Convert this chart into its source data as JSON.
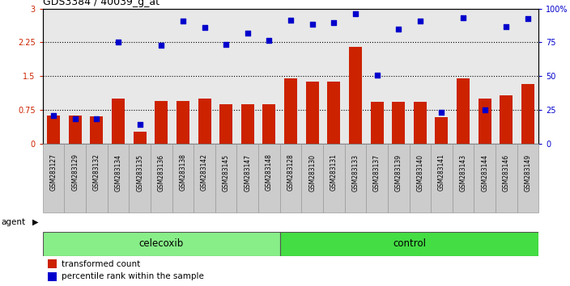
{
  "title": "GDS3384 / 40039_g_at",
  "samples": [
    "GSM283127",
    "GSM283129",
    "GSM283132",
    "GSM283134",
    "GSM283135",
    "GSM283136",
    "GSM283138",
    "GSM283142",
    "GSM283145",
    "GSM283147",
    "GSM283148",
    "GSM283128",
    "GSM283130",
    "GSM283131",
    "GSM283133",
    "GSM283137",
    "GSM283139",
    "GSM283140",
    "GSM283141",
    "GSM283143",
    "GSM283144",
    "GSM283146",
    "GSM283149"
  ],
  "red_bars": [
    0.62,
    0.62,
    0.6,
    1.0,
    0.27,
    0.95,
    0.95,
    1.0,
    0.88,
    0.88,
    0.88,
    1.45,
    1.37,
    1.37,
    2.15,
    0.92,
    0.92,
    0.93,
    0.58,
    1.45,
    1.0,
    1.07,
    1.32
  ],
  "blue_dots": [
    0.62,
    0.55,
    0.55,
    2.25,
    0.42,
    2.18,
    2.72,
    2.58,
    2.2,
    2.45,
    2.3,
    2.75,
    2.65,
    2.68,
    2.88,
    1.52,
    2.55,
    2.72,
    0.7,
    2.8,
    0.75,
    2.6,
    2.78
  ],
  "celecoxib_count": 11,
  "control_count": 12,
  "ylim_left": [
    0,
    3
  ],
  "ylim_right": [
    0,
    100
  ],
  "yticks_left": [
    0,
    0.75,
    1.5,
    2.25,
    3
  ],
  "yticks_right": [
    0,
    25,
    50,
    75,
    100
  ],
  "ytick_labels_left": [
    "0",
    "0.75",
    "1.5",
    "2.25",
    "3"
  ],
  "ytick_labels_right": [
    "0",
    "25",
    "50",
    "75",
    "100%"
  ],
  "hlines": [
    0.75,
    1.5,
    2.25
  ],
  "red_color": "#CC2200",
  "blue_color": "#0000CC",
  "celecoxib_color": "#88EE88",
  "control_color": "#44DD44",
  "agent_box_color": "#C0C0C0",
  "bar_width": 0.6,
  "legend_red": "transformed count",
  "legend_blue": "percentile rank within the sample",
  "xlabel_agent": "agent",
  "label_celecoxib": "celecoxib",
  "label_control": "control",
  "plot_bg_color": "#E8E8E8",
  "tick_bg_color": "#CCCCCC"
}
